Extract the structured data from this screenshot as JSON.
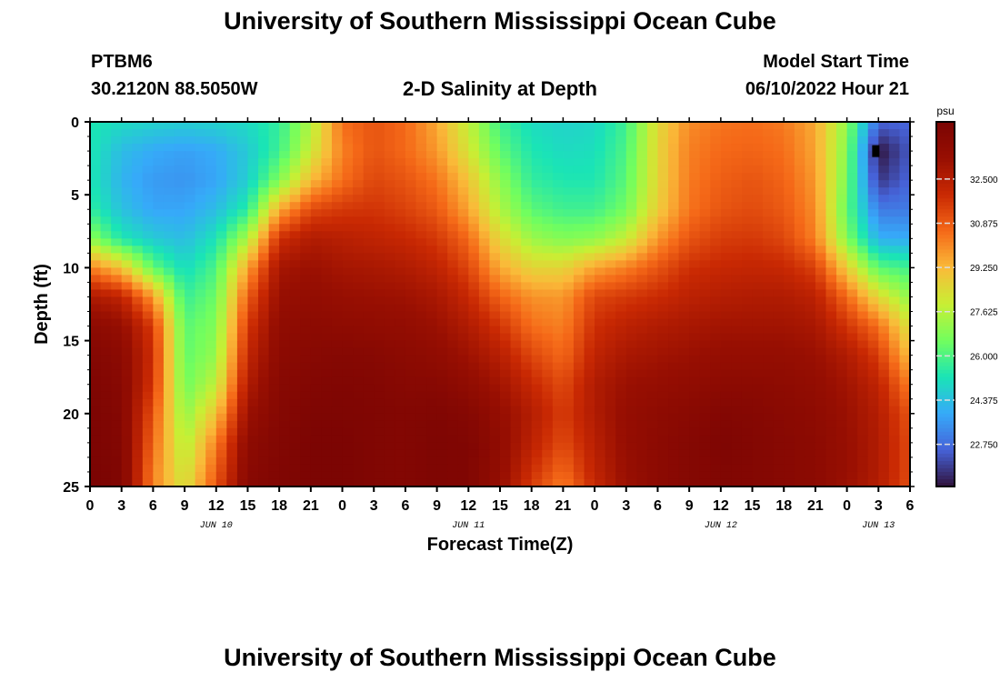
{
  "header": {
    "title": "University of Southern Mississippi Ocean Cube",
    "station_id": "PTBM6",
    "station_coords": "30.2120N  88.5050W",
    "plot_title": "2-D Salinity at Depth",
    "model_start_label": "Model Start Time",
    "model_start_value": "06/10/2022 Hour 21"
  },
  "footer": {
    "title": "University of Southern Mississippi Ocean Cube"
  },
  "chart_data": {
    "type": "heatmap",
    "xlabel": "Forecast Time(Z)",
    "ylabel": "Depth (ft)",
    "colorbar_unit": "psu",
    "colorbar_ticks": [
      "32.500",
      "30.875",
      "29.250",
      "27.625",
      "26.000",
      "24.375",
      "22.750"
    ],
    "colorbar_tick_values": [
      32.5,
      30.875,
      29.25,
      27.625,
      26.0,
      24.375,
      22.75
    ],
    "color_range": [
      21.2,
      34.6
    ],
    "y_ticks": [
      "0",
      "5",
      "10",
      "15",
      "20",
      "25"
    ],
    "y_range": [
      0,
      25
    ],
    "x_hours_range": [
      0,
      78
    ],
    "x_tick_labels": [
      "0",
      "3",
      "6",
      "9",
      "12",
      "15",
      "18",
      "21",
      "0",
      "3",
      "6",
      "9",
      "12",
      "15",
      "18",
      "21",
      "0",
      "3",
      "6",
      "9",
      "12",
      "15",
      "18",
      "21",
      "0",
      "3",
      "6"
    ],
    "date_labels": [
      {
        "label": "JUN 10",
        "hour": 12
      },
      {
        "label": "JUN 11",
        "hour": 36
      },
      {
        "label": "JUN 12",
        "hour": 60
      },
      {
        "label": "JUN 13",
        "hour": 75
      }
    ],
    "depths_ft": [
      0,
      2,
      4,
      6,
      8,
      10,
      12,
      14,
      16,
      18,
      20,
      22,
      24,
      25
    ],
    "hours": [
      0,
      3,
      6,
      9,
      12,
      15,
      18,
      21,
      24,
      27,
      30,
      33,
      36,
      39,
      42,
      45,
      48,
      51,
      54,
      57,
      60,
      63,
      66,
      69,
      72,
      75,
      78
    ],
    "salinity_psu": [
      [
        25.3,
        25.0,
        24.8,
        24.7,
        24.8,
        25.0,
        25.6,
        27.5,
        30.5,
        31.0,
        30.6,
        29.5,
        27.8,
        25.8,
        25.0,
        24.8,
        24.9,
        25.8,
        28.5,
        30.0,
        30.4,
        30.5,
        30.3,
        29.5,
        27.0,
        22.6,
        22.6
      ],
      [
        25.3,
        24.3,
        23.9,
        23.7,
        23.9,
        24.6,
        25.8,
        28.0,
        30.2,
        31.0,
        30.6,
        29.8,
        28.2,
        26.3,
        25.3,
        25.0,
        25.1,
        26.0,
        28.6,
        30.2,
        30.6,
        30.7,
        30.5,
        29.6,
        26.8,
        21.2,
        22.4
      ],
      [
        25.3,
        24.1,
        23.6,
        23.5,
        23.8,
        24.7,
        26.8,
        29.2,
        30.5,
        31.3,
        31.0,
        30.4,
        29.0,
        27.0,
        25.6,
        25.3,
        25.3,
        26.2,
        28.6,
        30.3,
        30.8,
        31.0,
        30.7,
        29.8,
        26.6,
        21.8,
        22.6
      ],
      [
        25.6,
        24.4,
        23.8,
        23.8,
        24.3,
        25.5,
        29.5,
        31.2,
        31.6,
        31.7,
        31.4,
        30.9,
        29.6,
        27.5,
        26.2,
        25.8,
        25.8,
        26.6,
        28.8,
        30.4,
        31.0,
        31.2,
        30.9,
        30.0,
        26.3,
        23.0,
        23.0
      ],
      [
        27.0,
        25.3,
        24.6,
        24.3,
        25.2,
        27.5,
        31.8,
        32.6,
        32.4,
        32.2,
        32.0,
        31.6,
        30.6,
        28.5,
        27.2,
        26.8,
        27.0,
        27.9,
        29.8,
        31.0,
        31.5,
        31.6,
        31.3,
        30.2,
        26.8,
        24.0,
        23.9
      ],
      [
        30.2,
        29.0,
        26.3,
        25.0,
        26.0,
        29.6,
        32.9,
        33.2,
        32.9,
        32.8,
        32.6,
        32.2,
        31.3,
        29.5,
        28.6,
        28.6,
        29.6,
        30.2,
        31.0,
        31.8,
        32.0,
        32.1,
        32.0,
        31.4,
        28.8,
        26.2,
        25.8
      ],
      [
        32.7,
        32.2,
        29.8,
        25.7,
        26.5,
        30.8,
        33.3,
        33.5,
        33.3,
        33.2,
        33.1,
        32.8,
        32.0,
        30.7,
        29.9,
        29.8,
        31.3,
        31.6,
        31.9,
        32.3,
        32.5,
        32.6,
        32.6,
        32.3,
        30.6,
        28.5,
        27.0
      ],
      [
        33.8,
        33.4,
        31.5,
        26.2,
        26.8,
        31.6,
        33.6,
        33.8,
        33.7,
        33.6,
        33.5,
        33.2,
        32.6,
        31.7,
        30.5,
        30.2,
        31.8,
        32.3,
        32.6,
        32.8,
        33.0,
        33.0,
        33.0,
        32.8,
        31.7,
        30.5,
        28.2
      ],
      [
        34.2,
        33.8,
        31.8,
        26.3,
        27.1,
        32.1,
        33.8,
        34.0,
        34.1,
        34.0,
        33.8,
        33.6,
        33.1,
        32.4,
        31.3,
        30.6,
        32.2,
        32.8,
        33.0,
        33.2,
        33.4,
        33.4,
        33.4,
        33.2,
        32.6,
        31.5,
        29.1
      ],
      [
        34.4,
        34.0,
        31.6,
        26.5,
        27.8,
        32.6,
        34.0,
        34.2,
        34.3,
        34.2,
        34.0,
        34.0,
        33.6,
        33.0,
        32.0,
        31.2,
        32.6,
        33.2,
        33.4,
        33.6,
        33.8,
        33.8,
        33.7,
        33.5,
        33.0,
        32.2,
        30.2
      ],
      [
        34.5,
        34.1,
        31.0,
        27.0,
        29.0,
        33.2,
        34.1,
        34.4,
        34.4,
        34.3,
        34.2,
        34.3,
        34.1,
        33.4,
        32.5,
        31.5,
        32.6,
        33.4,
        33.7,
        33.9,
        34.2,
        34.1,
        33.9,
        33.7,
        33.2,
        32.5,
        31.0
      ],
      [
        34.5,
        34.2,
        30.6,
        27.5,
        30.2,
        33.7,
        34.2,
        34.5,
        34.5,
        34.3,
        34.2,
        34.4,
        34.3,
        33.6,
        32.3,
        31.2,
        32.4,
        33.4,
        33.8,
        34.1,
        34.4,
        34.2,
        34.0,
        33.8,
        33.3,
        32.6,
        31.2
      ],
      [
        34.6,
        34.3,
        30.2,
        28.0,
        30.8,
        33.9,
        34.3,
        34.5,
        34.5,
        34.3,
        34.2,
        34.4,
        34.3,
        33.5,
        31.8,
        30.6,
        32.2,
        33.3,
        33.8,
        34.1,
        34.3,
        34.2,
        34.0,
        33.8,
        33.3,
        32.6,
        31.2
      ],
      [
        34.6,
        34.3,
        30.2,
        28.2,
        31.0,
        34.0,
        34.3,
        34.5,
        34.5,
        34.3,
        34.2,
        34.4,
        34.3,
        33.4,
        31.5,
        30.2,
        32.0,
        33.2,
        33.8,
        34.1,
        34.3,
        34.2,
        34.0,
        33.8,
        33.2,
        32.5,
        31.1
      ]
    ]
  }
}
